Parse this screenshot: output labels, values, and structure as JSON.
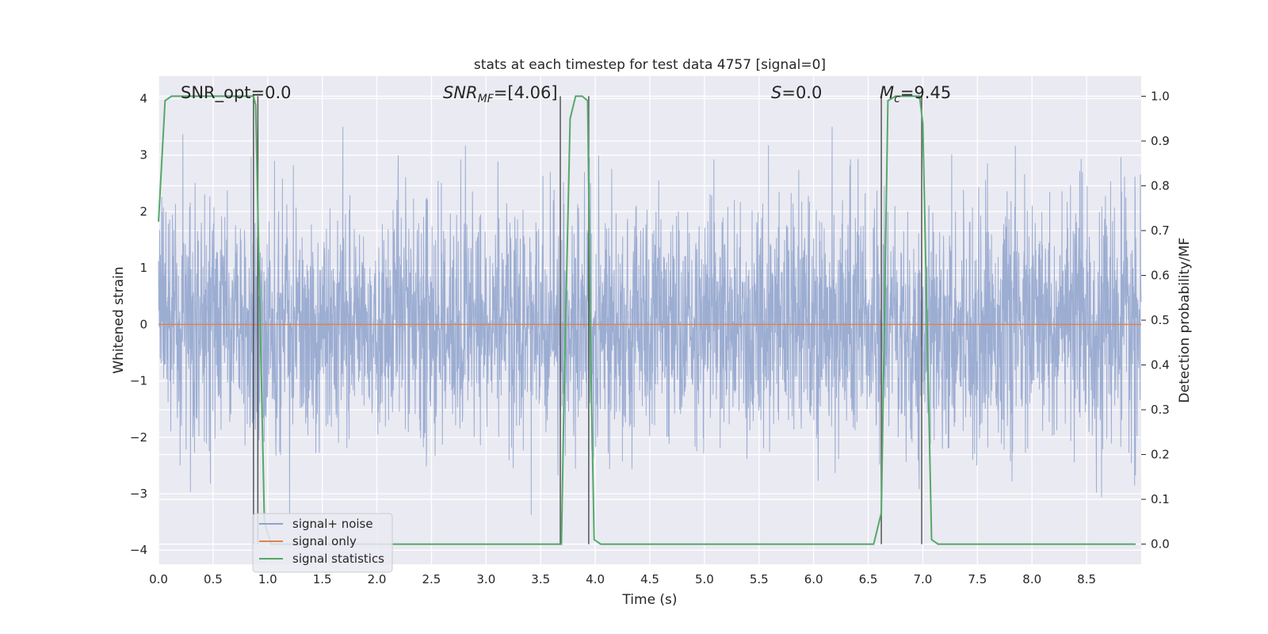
{
  "chart_data": {
    "type": "line",
    "title": "stats at each timestep for test data 4757 [signal=0]",
    "xlabel": "Time (s)",
    "ylabel_left": "Whitened strain",
    "ylabel_right": "Detection probability/MF",
    "xlim": [
      0,
      9.0
    ],
    "ylim_left": [
      -4.25,
      4.4
    ],
    "ylim_right": [
      -0.045,
      1.045
    ],
    "x_ticks": [
      "0.0",
      "0.5",
      "1.0",
      "1.5",
      "2.0",
      "2.5",
      "3.0",
      "3.5",
      "4.0",
      "4.5",
      "5.0",
      "5.5",
      "6.0",
      "6.5",
      "7.0",
      "7.5",
      "8.0",
      "8.5"
    ],
    "y_ticks_left": [
      "−4",
      "−3",
      "−2",
      "−1",
      "0",
      "1",
      "2",
      "3",
      "4"
    ],
    "y_ticks_right": [
      "0.0",
      "0.1",
      "0.2",
      "0.3",
      "0.4",
      "0.5",
      "0.6",
      "0.7",
      "0.8",
      "0.9",
      "1.0"
    ],
    "grid": true,
    "legend_position": "lower-left",
    "annotations": {
      "snr_opt": "SNR_opt=0.0",
      "snr_mf_base": "SNR",
      "snr_mf_sub": "MF",
      "snr_mf_val": "=[4.06]",
      "s_sym": "S",
      "s_val": "=0.0",
      "mc_base": "M",
      "mc_sub": "c",
      "mc_val": "=9.45"
    },
    "series": [
      {
        "name": "signal+ noise",
        "color": "#8ea2cd",
        "axis": "left",
        "description_only": "whitened noise samples, roughly within ±2.5 with spikes to about ±3.5"
      },
      {
        "name": "signal only",
        "color": "#dd8452",
        "axis": "left",
        "x": [
          0,
          9.0
        ],
        "y": [
          0,
          0
        ]
      },
      {
        "name": "signal statistics",
        "color": "#55a868",
        "axis": "right",
        "x": [
          0,
          0.06,
          0.12,
          0.85,
          0.87,
          0.89,
          0.97,
          1.03,
          1.1,
          2.0,
          3.0,
          3.69,
          3.72,
          3.77,
          3.82,
          3.88,
          3.93,
          3.96,
          3.99,
          4.05,
          4.5,
          5.5,
          6.55,
          6.62,
          6.68,
          6.75,
          6.8,
          6.97,
          7.0,
          7.08,
          7.14,
          8.0,
          8.95
        ],
        "y": [
          0.72,
          0.99,
          1.0,
          1.0,
          1.0,
          0.98,
          0.05,
          0.0,
          0.0,
          0.0,
          0.0,
          0.0,
          0.4,
          0.95,
          1.0,
          1.0,
          0.99,
          0.4,
          0.01,
          0.0,
          0.0,
          0.0,
          0.0,
          0.07,
          0.99,
          1.0,
          1.0,
          1.0,
          0.94,
          0.01,
          0.0,
          0.0,
          0.0
        ]
      }
    ],
    "vertical_markers_s": [
      0.87,
      0.91,
      3.68,
      3.94,
      6.62,
      6.99
    ],
    "marker_color": "#555555"
  }
}
